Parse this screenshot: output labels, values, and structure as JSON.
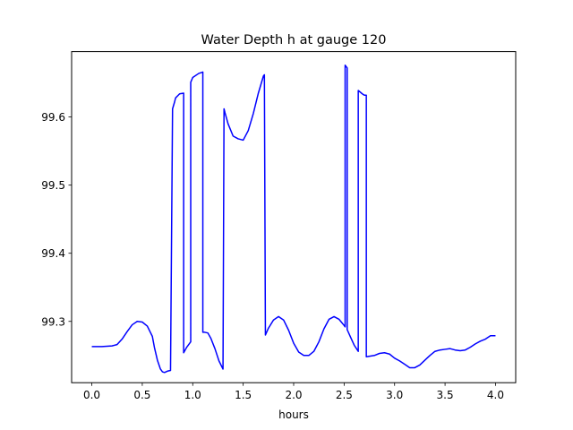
{
  "chart_data": {
    "type": "line",
    "title": "Water Depth h at gauge 120",
    "xlabel": "hours",
    "ylabel": "",
    "xlim": [
      -0.2,
      4.2
    ],
    "ylim": [
      99.21,
      99.696
    ],
    "xticks": [
      0.0,
      0.5,
      1.0,
      1.5,
      2.0,
      2.5,
      3.0,
      3.5,
      4.0
    ],
    "xtick_labels": [
      "0.0",
      "0.5",
      "1.0",
      "1.5",
      "2.0",
      "2.5",
      "3.0",
      "3.5",
      "4.0"
    ],
    "yticks": [
      99.3,
      99.4,
      99.5,
      99.6
    ],
    "ytick_labels": [
      "99.3",
      "99.4",
      "99.5",
      "99.6"
    ],
    "grid": false,
    "line_color": "#0000ff",
    "series": [
      {
        "x": [
          0.0,
          0.1,
          0.2,
          0.25,
          0.3,
          0.35,
          0.4,
          0.45,
          0.5,
          0.55,
          0.6,
          0.62,
          0.65,
          0.68,
          0.7,
          0.72,
          0.75,
          0.78,
          0.8,
          0.82,
          0.83,
          0.87,
          0.91,
          0.91,
          0.94,
          0.98,
          0.98,
          1.0,
          1.06,
          1.1,
          1.1,
          1.12,
          1.15,
          1.18,
          1.22,
          1.26,
          1.3,
          1.31,
          1.32,
          1.35,
          1.4,
          1.45,
          1.5,
          1.55,
          1.6,
          1.65,
          1.7,
          1.71,
          1.72,
          1.75,
          1.8,
          1.85,
          1.9,
          1.95,
          2.0,
          2.05,
          2.1,
          2.15,
          2.2,
          2.25,
          2.3,
          2.35,
          2.4,
          2.45,
          2.5,
          2.51,
          2.51,
          2.52,
          2.53,
          2.53,
          2.56,
          2.6,
          2.64,
          2.64,
          2.68,
          2.7,
          2.72,
          2.72,
          2.8,
          2.85,
          2.9,
          2.95,
          3.0,
          3.05,
          3.1,
          3.15,
          3.2,
          3.25,
          3.3,
          3.35,
          3.4,
          3.45,
          3.5,
          3.55,
          3.6,
          3.65,
          3.7,
          3.75,
          3.8,
          3.85,
          3.9,
          3.95,
          4.0
        ],
        "y": [
          99.263,
          99.263,
          99.264,
          99.266,
          99.274,
          99.285,
          99.295,
          99.3,
          99.299,
          99.293,
          99.278,
          99.262,
          99.243,
          99.23,
          99.226,
          99.225,
          99.227,
          99.228,
          99.612,
          99.622,
          99.628,
          99.634,
          99.635,
          99.254,
          99.262,
          99.27,
          99.651,
          99.658,
          99.664,
          99.666,
          99.284,
          99.284,
          99.283,
          99.275,
          99.26,
          99.242,
          99.23,
          99.612,
          99.606,
          99.59,
          99.572,
          99.568,
          99.566,
          99.58,
          99.605,
          99.635,
          99.66,
          99.662,
          99.28,
          99.29,
          99.302,
          99.307,
          99.302,
          99.287,
          99.268,
          99.255,
          99.25,
          99.25,
          99.256,
          99.27,
          99.289,
          99.303,
          99.307,
          99.303,
          99.294,
          99.292,
          99.676,
          99.674,
          99.672,
          99.288,
          99.278,
          99.265,
          99.256,
          99.639,
          99.634,
          99.632,
          99.632,
          99.248,
          99.25,
          99.253,
          99.254,
          99.252,
          99.246,
          99.242,
          99.237,
          99.232,
          99.232,
          99.236,
          99.243,
          99.25,
          99.256,
          99.258,
          99.259,
          99.26,
          99.258,
          99.257,
          99.258,
          99.262,
          99.267,
          99.271,
          99.274,
          99.279,
          99.279
        ]
      }
    ]
  }
}
